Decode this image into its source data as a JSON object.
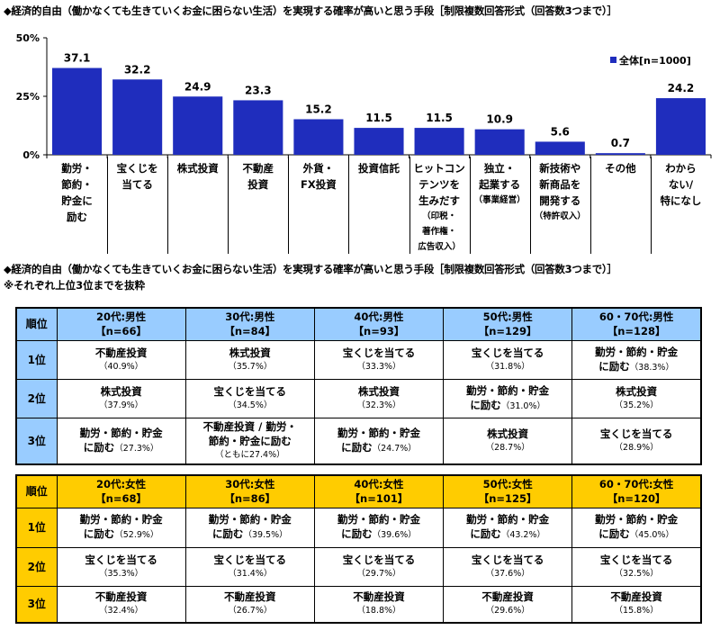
{
  "title1": "◆経済的自由（働かなくても生きていくお金に困らない生活）を実現する確率が高いと思う手段［制限複数回答形式（回答数3つまで）］",
  "title2": "◆経済的自由（働かなくても生きていくお金に困らない生活）を実現する確率が高いと思う手段［制限複数回答形式（回答数3つまで）］",
  "note": "※それぞれ上位3位までを抜粋",
  "chart_data": {
    "type": "bar",
    "ylim": [
      0,
      50
    ],
    "yticks": [
      "0%",
      "25%",
      "50%"
    ],
    "grid": false,
    "legend_placement": "top-right",
    "bar_color": "#1f2dbd",
    "series": [
      {
        "name": "全体[n=1000]",
        "values": [
          37.1,
          32.2,
          24.9,
          23.3,
          15.2,
          11.5,
          11.5,
          10.9,
          5.6,
          0.7,
          24.2
        ]
      }
    ],
    "categories": [
      {
        "lines": [
          "勤労・",
          "節約・",
          "貯金に",
          "励む"
        ],
        "sub": []
      },
      {
        "lines": [
          "宝くじを",
          "当てる"
        ],
        "sub": []
      },
      {
        "lines": [
          "株式投資"
        ],
        "sub": []
      },
      {
        "lines": [
          "不動産",
          "投資"
        ],
        "sub": []
      },
      {
        "lines": [
          "外貨・",
          "FX投資"
        ],
        "sub": []
      },
      {
        "lines": [
          "投資信託"
        ],
        "sub": []
      },
      {
        "lines": [
          "ヒットコン",
          "テンツを",
          "生みだす"
        ],
        "sub": [
          "（印税・",
          "著作権・",
          "広告収入）"
        ]
      },
      {
        "lines": [
          "独立・",
          "起業する"
        ],
        "sub": [
          "（事業経営）"
        ]
      },
      {
        "lines": [
          "新技術や",
          "新商品を",
          "開発する"
        ],
        "sub": [
          "（特許収入）"
        ]
      },
      {
        "lines": [
          "その他"
        ],
        "sub": []
      },
      {
        "lines": [
          "わから",
          "ない/",
          "特になし"
        ],
        "sub": []
      }
    ]
  },
  "tables": [
    {
      "color": "#99ccff",
      "rank_header": "順位",
      "ranks": [
        "1位",
        "2位",
        "3位"
      ],
      "cols": [
        {
          "g": "20代:男性",
          "n": "【n=66】"
        },
        {
          "g": "30代:男性",
          "n": "【n=84】"
        },
        {
          "g": "40代:男性",
          "n": "【n=93】"
        },
        {
          "g": "50代:男性",
          "n": "【n=129】"
        },
        {
          "g": "60・70代:男性",
          "n": "【n=128】"
        }
      ],
      "rows": [
        [
          {
            "l1": "不動産投資",
            "pct": "（40.9%）"
          },
          {
            "l1": "株式投資",
            "pct": "（35.7%）"
          },
          {
            "l1": "宝くじを当てる",
            "pct": "（33.3%）"
          },
          {
            "l1": "宝くじを当てる",
            "pct": "（31.8%）"
          },
          {
            "l1": "勤労・節約・貯金",
            "l2": "に励む",
            "pct": "（38.3%）"
          }
        ],
        [
          {
            "l1": "株式投資",
            "pct": "（37.9%）"
          },
          {
            "l1": "宝くじを当てる",
            "pct": "（34.5%）"
          },
          {
            "l1": "株式投資",
            "pct": "（32.3%）"
          },
          {
            "l1": "勤労・節約・貯金",
            "l2": "に励む",
            "pct": "（31.0%）"
          },
          {
            "l1": "株式投資",
            "pct": "（35.2%）"
          }
        ],
        [
          {
            "l1": "勤労・節約・貯金",
            "l2": "に励む",
            "pct": "（27.3%）"
          },
          {
            "l1": "不動産投資 / 勤労・",
            "l2": "節約・貯金に励む",
            "pct": "（ともに27.4%）",
            "newline": true
          },
          {
            "l1": "勤労・節約・貯金",
            "l2": "に励む",
            "pct": "（24.7%）"
          },
          {
            "l1": "株式投資",
            "pct": "（28.7%）"
          },
          {
            "l1": "宝くじを当てる",
            "pct": "（28.9%）"
          }
        ]
      ]
    },
    {
      "color": "#ffcc00",
      "rank_header": "順位",
      "ranks": [
        "1位",
        "2位",
        "3位"
      ],
      "cols": [
        {
          "g": "20代:女性",
          "n": "【n=68】"
        },
        {
          "g": "30代:女性",
          "n": "【n=86】"
        },
        {
          "g": "40代:女性",
          "n": "【n=101】"
        },
        {
          "g": "50代:女性",
          "n": "【n=125】"
        },
        {
          "g": "60・70代:女性",
          "n": "【n=120】"
        }
      ],
      "rows": [
        [
          {
            "l1": "勤労・節約・貯金",
            "l2": "に励む",
            "pct": "（52.9%）"
          },
          {
            "l1": "勤労・節約・貯金",
            "l2": "に励む",
            "pct": "（39.5%）"
          },
          {
            "l1": "勤労・節約・貯金",
            "l2": "に励む",
            "pct": "（39.6%）"
          },
          {
            "l1": "勤労・節約・貯金",
            "l2": "に励む",
            "pct": "（43.2%）"
          },
          {
            "l1": "勤労・節約・貯金",
            "l2": "に励む",
            "pct": "（45.0%）"
          }
        ],
        [
          {
            "l1": "宝くじを当てる",
            "pct": "（35.3%）"
          },
          {
            "l1": "宝くじを当てる",
            "pct": "（31.4%）"
          },
          {
            "l1": "宝くじを当てる",
            "pct": "（29.7%）"
          },
          {
            "l1": "宝くじを当てる",
            "pct": "（37.6%）"
          },
          {
            "l1": "宝くじを当てる",
            "pct": "（32.5%）"
          }
        ],
        [
          {
            "l1": "不動産投資",
            "pct": "（32.4%）"
          },
          {
            "l1": "不動産投資",
            "pct": "（26.7%）"
          },
          {
            "l1": "不動産投資",
            "pct": "（18.8%）"
          },
          {
            "l1": "不動産投資",
            "pct": "（29.6%）"
          },
          {
            "l1": "不動産投資",
            "pct": "（15.8%）"
          }
        ]
      ]
    }
  ]
}
